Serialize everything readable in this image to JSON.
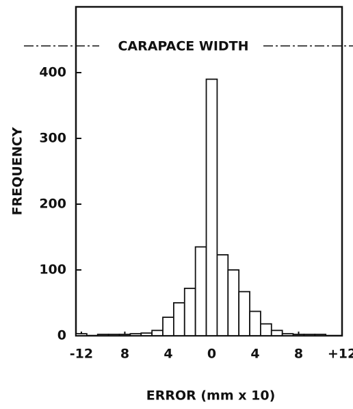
{
  "chart_data": {
    "type": "histogram",
    "title": "CARAPACE WIDTH",
    "xlabel": "ERROR (mm x 10)",
    "ylabel": "FREQUENCY",
    "bins": [
      -12.5,
      -11.5,
      -10.5,
      -9.5,
      -8.5,
      -7.5,
      -6.5,
      -5.5,
      -4.5,
      -3.5,
      -2.5,
      -1.5,
      -0.5,
      0.5,
      1.5,
      2.5,
      3.5,
      4.5,
      5.5,
      6.5,
      7.5,
      8.5,
      9.5,
      10.5
    ],
    "values": [
      3,
      0,
      2,
      2,
      2,
      3,
      4,
      8,
      28,
      50,
      72,
      135,
      390,
      123,
      100,
      67,
      37,
      18,
      8,
      3,
      2,
      2,
      2
    ],
    "color": "#ffffff",
    "xlim": [
      -12.5,
      12
    ],
    "ylim": [
      0,
      500
    ],
    "xticks": [
      -12,
      {
        "value": -8,
        "label": "8"
      },
      {
        "value": -4,
        "label": "4"
      },
      0,
      4,
      8,
      {
        "value": 12,
        "label": "+12"
      }
    ],
    "yticks": [
      0,
      100,
      200,
      300,
      400
    ]
  }
}
